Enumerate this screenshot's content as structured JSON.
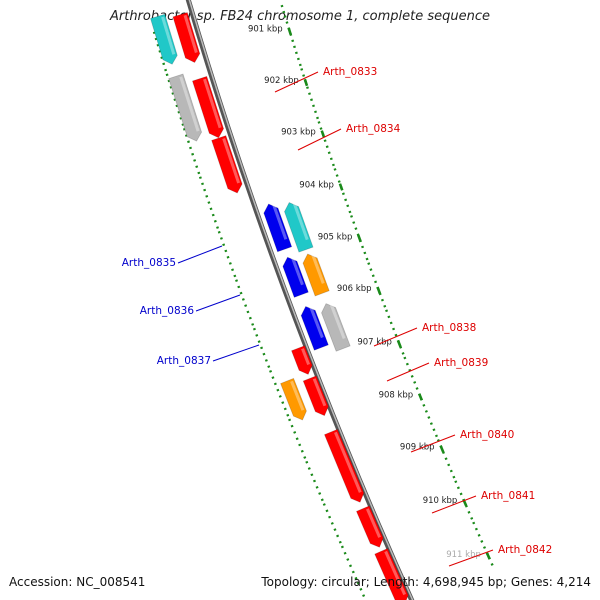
{
  "title": "Arthrobacter sp. FB24 chromosome 1, complete sequence",
  "accession_label": "Accession: NC_008541",
  "topology_label": "Topology: circular; Length: 4,698,945 bp; Genes: 4,214",
  "ruler": {
    "ticks": [
      "901 kbp",
      "902 kbp",
      "903 kbp",
      "904 kbp",
      "905 kbp",
      "906 kbp",
      "907 kbp",
      "908 kbp",
      "909 kbp",
      "910 kbp",
      "911 kbp"
    ]
  },
  "colors": {
    "red": "#ff0000",
    "cyan": "#20c8c8",
    "gray": "#b8b8b8",
    "blue": "#0000ee",
    "orange": "#ff9900",
    "backbone": "#777777",
    "ruler": "#1a8a1a",
    "label_right": "#dd0000",
    "label_left": "#0000cc"
  },
  "genes": [
    {
      "name": "",
      "strand": "forward",
      "color": "cyan",
      "labeled": false
    },
    {
      "name": "",
      "strand": "forward",
      "color": "red",
      "labeled": false
    },
    {
      "name": "Arth_0833",
      "strand": "forward",
      "color": "gray",
      "labeled": true
    },
    {
      "name": "",
      "strand": "forward",
      "color": "red",
      "labeled": false
    },
    {
      "name": "Arth_0834",
      "strand": "forward",
      "color": "red",
      "labeled": true
    },
    {
      "name": "",
      "strand": "reverse",
      "color": "cyan",
      "labeled": false
    },
    {
      "name": "Arth_0835",
      "strand": "reverse",
      "color": "blue",
      "labeled": true
    },
    {
      "name": "Arth_0836",
      "strand": "reverse",
      "color": "orange",
      "labeled": true
    },
    {
      "name": "",
      "strand": "reverse",
      "color": "blue",
      "labeled": false
    },
    {
      "name": "Arth_0837",
      "strand": "reverse",
      "color": "gray",
      "labeled": true
    },
    {
      "name": "",
      "strand": "reverse",
      "color": "blue",
      "labeled": false
    },
    {
      "name": "Arth_0838",
      "strand": "forward",
      "color": "red",
      "labeled": true
    },
    {
      "name": "Arth_0839",
      "strand": "forward",
      "color": "orange",
      "labeled": true
    },
    {
      "name": "",
      "strand": "forward",
      "color": "red",
      "labeled": false
    },
    {
      "name": "Arth_0840",
      "strand": "forward",
      "color": "red",
      "labeled": true
    },
    {
      "name": "Arth_0841",
      "strand": "forward",
      "color": "red",
      "labeled": true
    },
    {
      "name": "Arth_0842",
      "strand": "forward",
      "color": "red",
      "labeled": true
    }
  ]
}
